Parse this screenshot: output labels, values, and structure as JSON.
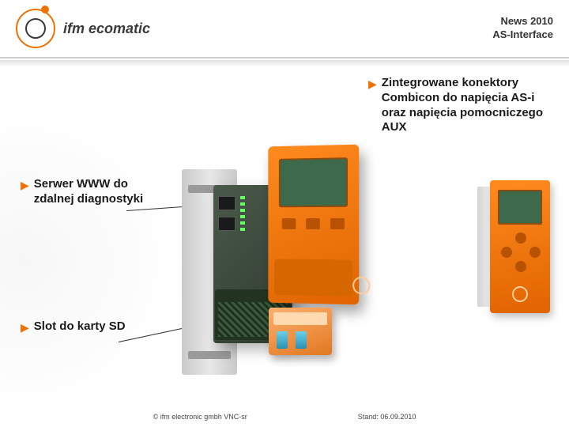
{
  "brand": {
    "name": "ifm ecomatic"
  },
  "header": {
    "line1": "News 2010",
    "line2": "AS-Interface"
  },
  "callouts": {
    "top_right": "Zintegrowane konektory Combicon do napięcia AS-i oraz napięcia pomocniczego AUX",
    "left_upper": "Serwer WWW do zdalnej diagnostyki",
    "left_lower": "Slot do karty SD"
  },
  "footer": {
    "copyright": "© ifm electronic gmbh VNC-sr",
    "date": "Stand: 06.09.2010"
  },
  "colors": {
    "accent": "#ee7203",
    "device_orange": "#ff8a1e",
    "device_green": "#3d6a4a",
    "module_dark": "#2e3a2e",
    "text": "#1a1a1a"
  }
}
